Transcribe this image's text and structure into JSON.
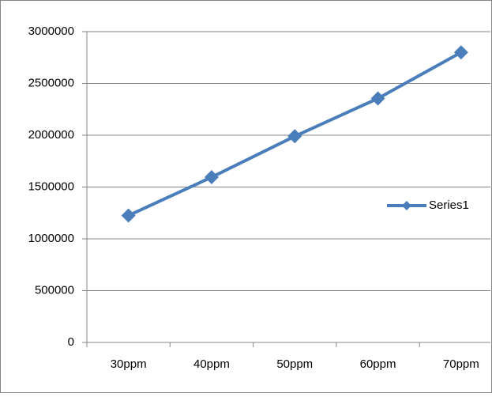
{
  "chart_data": {
    "type": "line",
    "categories": [
      "30ppm",
      "40ppm",
      "50ppm",
      "60ppm",
      "70ppm"
    ],
    "series": [
      {
        "name": "Series1",
        "color": "#4a7ebb",
        "values": [
          1225000,
          1595000,
          1990000,
          2355000,
          2800000
        ]
      }
    ],
    "ylim": [
      0,
      3000000
    ],
    "yticks": [
      0,
      500000,
      1000000,
      1500000,
      2000000,
      2500000,
      3000000
    ],
    "grid": true,
    "legend": "right"
  }
}
